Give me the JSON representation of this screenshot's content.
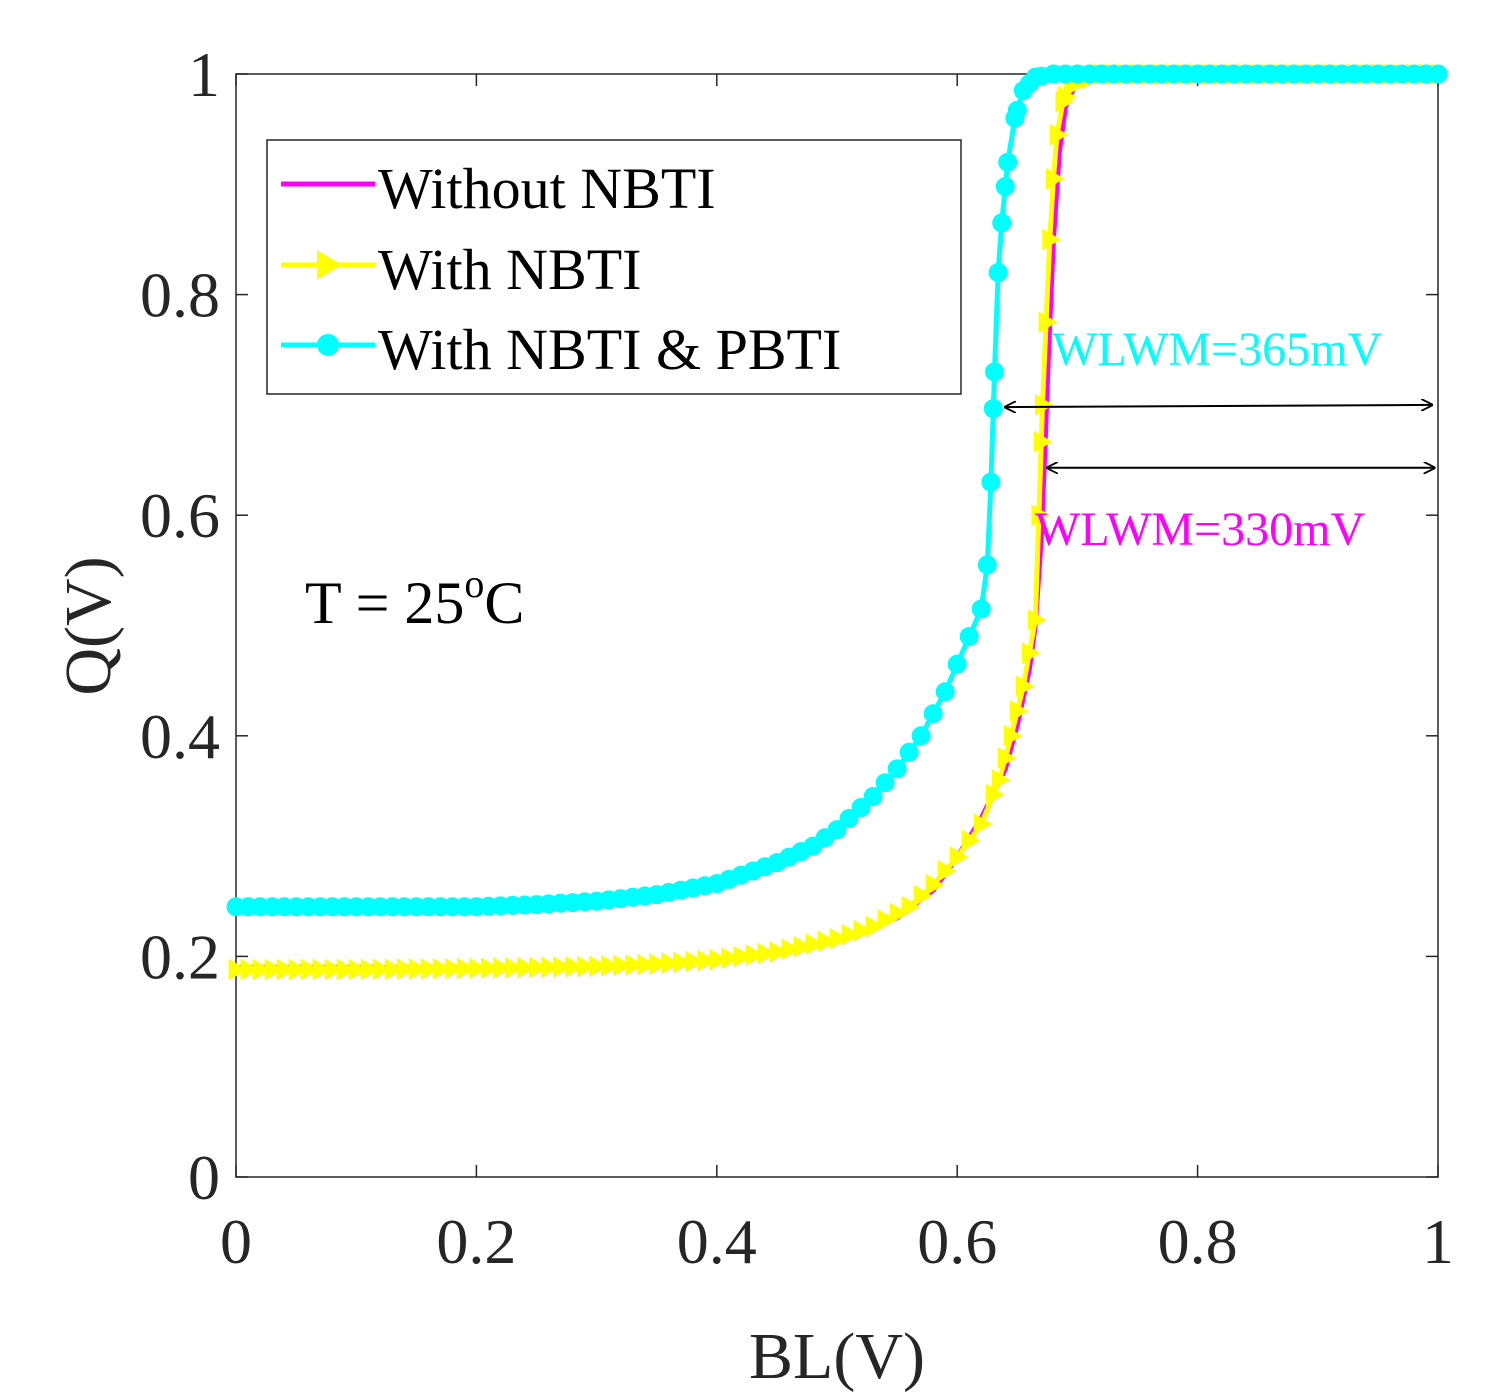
{
  "chart_data": {
    "type": "line",
    "title": "",
    "xlabel": "BL(V)",
    "ylabel": "Q(V)",
    "xlim": [
      0,
      1
    ],
    "ylim": [
      0,
      1
    ],
    "xticks": [
      0,
      0.2,
      0.4,
      0.6,
      0.8,
      1
    ],
    "yticks": [
      0,
      0.2,
      0.4,
      0.6,
      0.8,
      1
    ],
    "xtick_labels": [
      "0",
      "0.2",
      "0.4",
      "0.6",
      "0.8",
      "1"
    ],
    "ytick_labels": [
      "0",
      "0.2",
      "0.4",
      "0.6",
      "0.8",
      "1"
    ],
    "grid": false,
    "legend_position": "top-left",
    "series": [
      {
        "name": "Without NBTI",
        "color": "#ff00ff",
        "marker": "none",
        "points": [
          [
            0,
            0.19
          ],
          [
            0.1,
            0.19
          ],
          [
            0.2,
            0.19
          ],
          [
            0.3,
            0.192
          ],
          [
            0.35,
            0.194
          ],
          [
            0.4,
            0.198
          ],
          [
            0.45,
            0.205
          ],
          [
            0.5,
            0.215
          ],
          [
            0.55,
            0.235
          ],
          [
            0.58,
            0.26
          ],
          [
            0.6,
            0.29
          ],
          [
            0.62,
            0.325
          ],
          [
            0.64,
            0.37
          ],
          [
            0.65,
            0.41
          ],
          [
            0.66,
            0.46
          ],
          [
            0.665,
            0.5
          ],
          [
            0.67,
            0.58
          ],
          [
            0.673,
            0.66
          ],
          [
            0.676,
            0.75
          ],
          [
            0.68,
            0.85
          ],
          [
            0.685,
            0.93
          ],
          [
            0.69,
            0.97
          ],
          [
            0.7,
            0.995
          ],
          [
            0.72,
            1.0
          ],
          [
            0.8,
            1.0
          ],
          [
            0.9,
            1.0
          ],
          [
            1.0,
            1.0
          ]
        ]
      },
      {
        "name": "With NBTI",
        "color": "#ffff00",
        "marker": "triangle-right",
        "points": [
          [
            0,
            0.188
          ],
          [
            0.1,
            0.188
          ],
          [
            0.2,
            0.189
          ],
          [
            0.3,
            0.191
          ],
          [
            0.35,
            0.193
          ],
          [
            0.4,
            0.197
          ],
          [
            0.45,
            0.204
          ],
          [
            0.5,
            0.216
          ],
          [
            0.53,
            0.227
          ],
          [
            0.56,
            0.245
          ],
          [
            0.58,
            0.265
          ],
          [
            0.6,
            0.29
          ],
          [
            0.62,
            0.32
          ],
          [
            0.635,
            0.36
          ],
          [
            0.645,
            0.4
          ],
          [
            0.655,
            0.445
          ],
          [
            0.66,
            0.475
          ],
          [
            0.665,
            0.505
          ],
          [
            0.668,
            0.6
          ],
          [
            0.671,
            0.7
          ],
          [
            0.674,
            0.775
          ],
          [
            0.677,
            0.85
          ],
          [
            0.68,
            0.905
          ],
          [
            0.683,
            0.945
          ],
          [
            0.688,
            0.975
          ],
          [
            0.695,
            0.99
          ],
          [
            0.72,
            1.0
          ],
          [
            0.8,
            1.0
          ],
          [
            0.9,
            1.0
          ],
          [
            1.0,
            1.0
          ]
        ]
      },
      {
        "name": "With NBTI & PBTI",
        "color": "#00ffff",
        "marker": "circle",
        "points": [
          [
            0,
            0.245
          ],
          [
            0.1,
            0.245
          ],
          [
            0.2,
            0.245
          ],
          [
            0.25,
            0.247
          ],
          [
            0.3,
            0.25
          ],
          [
            0.35,
            0.256
          ],
          [
            0.4,
            0.266
          ],
          [
            0.45,
            0.285
          ],
          [
            0.48,
            0.3
          ],
          [
            0.5,
            0.315
          ],
          [
            0.53,
            0.345
          ],
          [
            0.55,
            0.37
          ],
          [
            0.57,
            0.4
          ],
          [
            0.59,
            0.44
          ],
          [
            0.6,
            0.465
          ],
          [
            0.61,
            0.49
          ],
          [
            0.62,
            0.515
          ],
          [
            0.625,
            0.555
          ],
          [
            0.628,
            0.63
          ],
          [
            0.631,
            0.73
          ],
          [
            0.634,
            0.82
          ],
          [
            0.637,
            0.865
          ],
          [
            0.642,
            0.92
          ],
          [
            0.648,
            0.96
          ],
          [
            0.655,
            0.985
          ],
          [
            0.665,
            0.997
          ],
          [
            0.68,
            1.0
          ],
          [
            0.8,
            1.0
          ],
          [
            0.9,
            1.0
          ],
          [
            1.0,
            1.0
          ]
        ]
      }
    ],
    "annotations": [
      {
        "text": "WLWM=365mV",
        "color": "#00ffff"
      },
      {
        "text": "WLWM=330mV",
        "color": "#ff00ff"
      },
      {
        "text": "T = 25",
        "superscript": "o",
        "suffix": "C",
        "color": "#000000"
      }
    ],
    "arrows": [
      {
        "name": "wlwm-365-arrow",
        "x_start": 0.64,
        "x_end": 0.995,
        "y_start": 0.698,
        "y_end": 0.7
      },
      {
        "name": "wlwm-330-arrow",
        "x_start": 0.675,
        "x_end": 0.997,
        "y_start": 0.643,
        "y_end": 0.643
      }
    ]
  }
}
